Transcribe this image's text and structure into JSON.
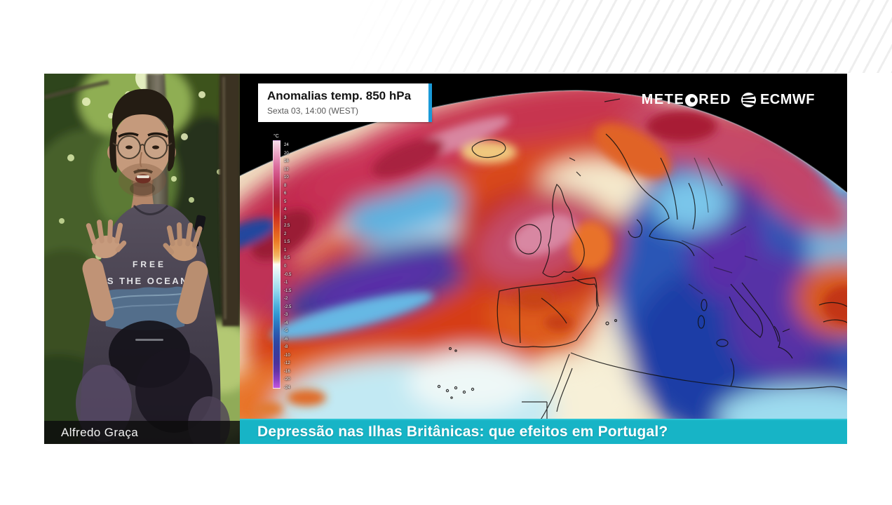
{
  "map_overlay": {
    "title_box": {
      "title": "Anomalias temp. 850 hPa",
      "subtitle": "Sexta 03, 14:00 (WEST)"
    },
    "brands": {
      "meteored_pre": "METE",
      "meteored_post": "RED",
      "ecmwf": "ECMWF"
    },
    "color_scale": {
      "unit": "°C",
      "labels": [
        "24",
        "20",
        "16",
        "12",
        "10",
        "8",
        "6",
        "5",
        "4",
        "3",
        "2.5",
        "2",
        "1.5",
        "1",
        "0.5",
        "0",
        "-0.5",
        "-1",
        "-1.5",
        "-2",
        "-2.5",
        "-3",
        "-4",
        "-5",
        "-6",
        "-8",
        "-10",
        "-12",
        "-16",
        "-20",
        "-24"
      ]
    },
    "banner": {
      "text": "Depressão nas Ilhas Britânicas: que efeitos em Portugal?"
    }
  },
  "presenter_panel": {
    "name": "Alfredo Graça",
    "shirt_text": [
      "FREE",
      "S THE OCEAN"
    ]
  },
  "colors": {
    "banner_cyan": "#17b4c6",
    "titlebox_accent_blue": "#1a9ad8",
    "map_warm_red": "#d63d18",
    "map_crimson": "#c1294e",
    "map_cold_blue": "#2a57b6",
    "map_cold_purple": "#5a2ea8"
  }
}
